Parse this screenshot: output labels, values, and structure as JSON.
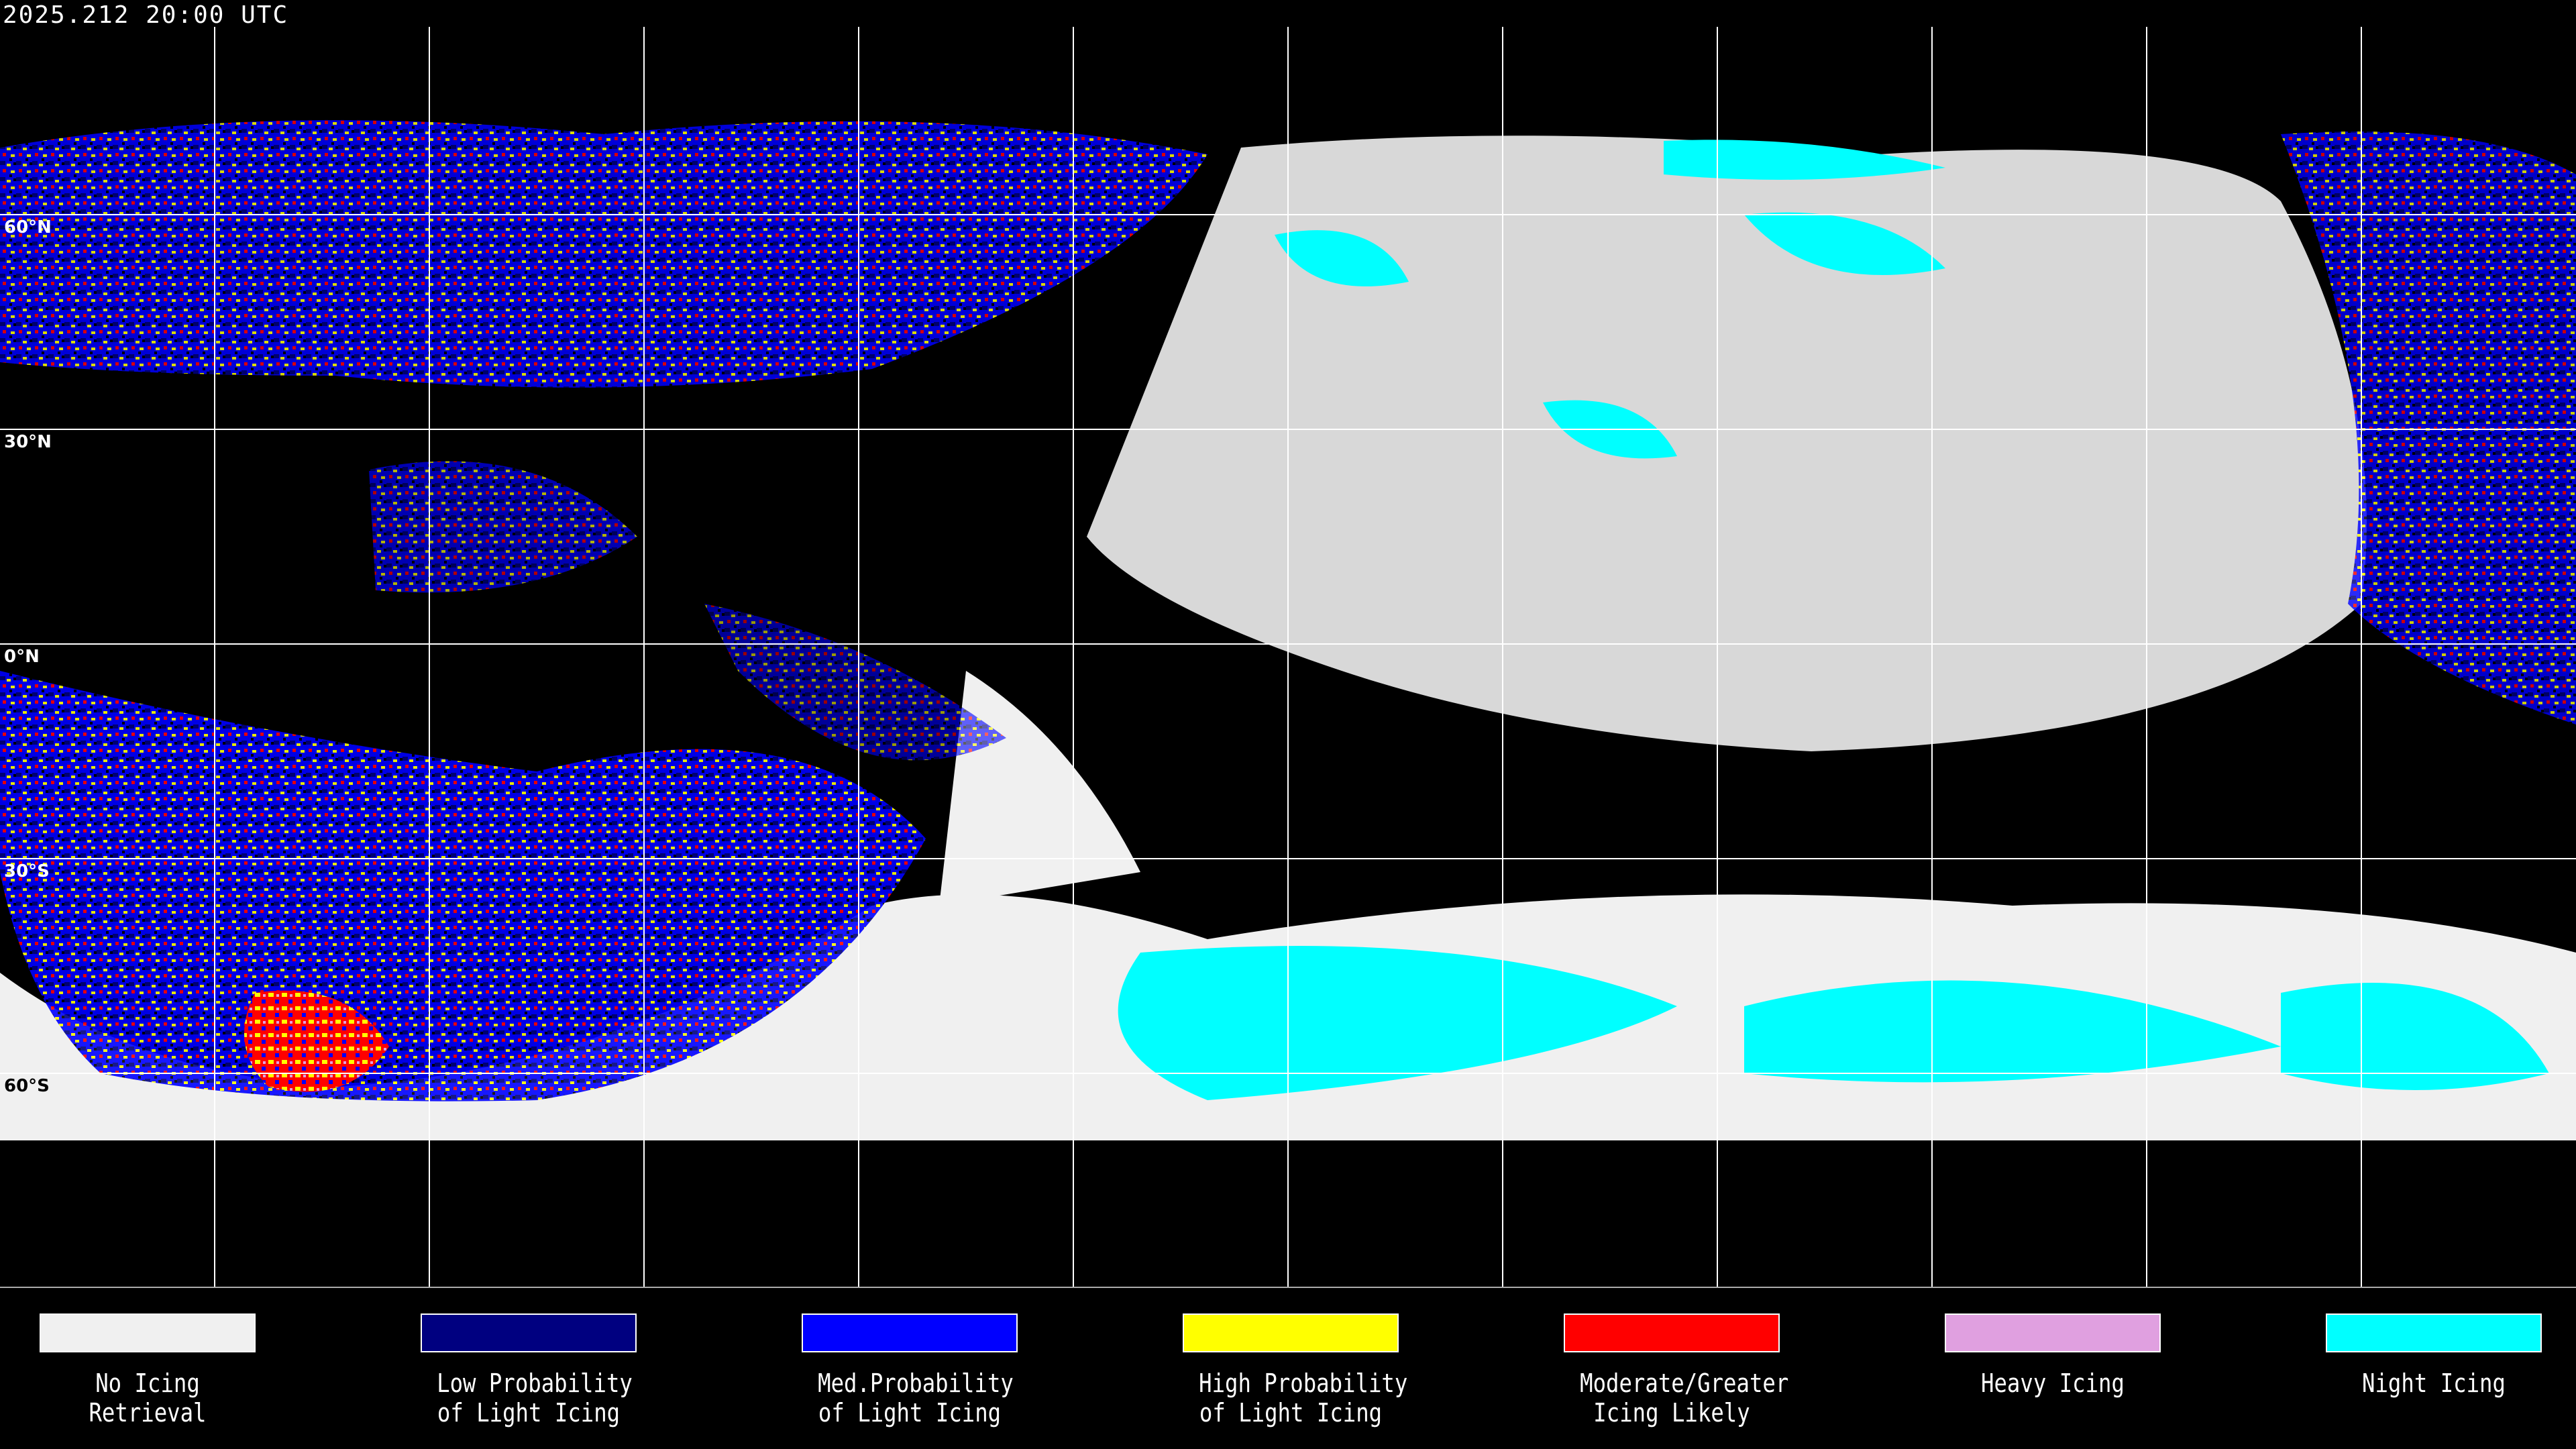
{
  "header": {
    "timestamp": "2025.212 20:00 UTC"
  },
  "map": {
    "projection": "equirectangular",
    "grid_spacing_degrees": 30,
    "lat_labels": [
      "60°N",
      "30°N",
      "0°N",
      "30°S",
      "60°S"
    ]
  },
  "legend": [
    {
      "line1": "No Icing",
      "line2": "Retrieval",
      "color": "#f0f0f0"
    },
    {
      "line1": "Low Probability",
      "line2": "of Light Icing",
      "color": "#000080"
    },
    {
      "line1": "Med.Probability",
      "line2": "of Light Icing",
      "color": "#0000ff"
    },
    {
      "line1": "High Probability",
      "line2": "of Light Icing",
      "color": "#ffff00"
    },
    {
      "line1": "Moderate/Greater",
      "line2": "Icing Likely",
      "color": "#ff0000"
    },
    {
      "line1": "Heavy Icing",
      "line2": "",
      "color": "#e0a0e0"
    },
    {
      "line1": "Night Icing",
      "line2": "",
      "color": "#00ffff"
    }
  ]
}
